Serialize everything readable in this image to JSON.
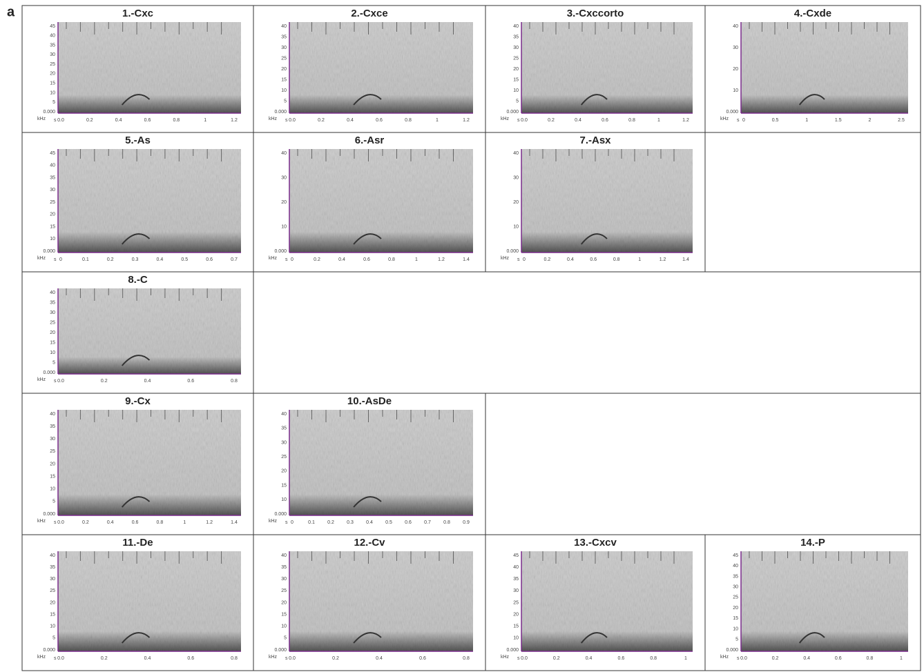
{
  "figure_label": "a",
  "y_unit": "kHz",
  "x_unit": "s",
  "panels": [
    {
      "title": "1.-Cxc",
      "yticks": [
        "45",
        "40",
        "35",
        "30",
        "25",
        "20",
        "15",
        "10",
        "5",
        "0.000"
      ],
      "xticks": [
        "0.0",
        "0.2",
        "0.4",
        "0.6",
        "0.8",
        "1",
        "1.2"
      ]
    },
    {
      "title": "2.-Cxce",
      "yticks": [
        "40",
        "35",
        "30",
        "25",
        "20",
        "15",
        "10",
        "5",
        "0.000"
      ],
      "xticks": [
        "0.0",
        "0.2",
        "0.4",
        "0.6",
        "0.8",
        "1",
        "1.2"
      ]
    },
    {
      "title": "3.-Cxccorto",
      "yticks": [
        "40",
        "35",
        "30",
        "25",
        "20",
        "15",
        "10",
        "5",
        "0.000"
      ],
      "xticks": [
        "0.0",
        "0.2",
        "0.4",
        "0.6",
        "0.8",
        "1",
        "1.2"
      ]
    },
    {
      "title": "4.-Cxde",
      "yticks": [
        "40",
        "30",
        "20",
        "10",
        "0.000"
      ],
      "xticks": [
        "0",
        "0.5",
        "1",
        "1.5",
        "2",
        "2.5"
      ]
    },
    {
      "title": "5.-As",
      "yticks": [
        "45",
        "40",
        "35",
        "30",
        "25",
        "20",
        "15",
        "10",
        "0.000"
      ],
      "xticks": [
        "0",
        "0.1",
        "0.2",
        "0.3",
        "0.4",
        "0.5",
        "0.6",
        "0.7"
      ]
    },
    {
      "title": "6.-Asr",
      "yticks": [
        "40",
        "30",
        "20",
        "10",
        "0.000"
      ],
      "xticks": [
        "0",
        "0.2",
        "0.4",
        "0.6",
        "0.8",
        "1",
        "1.2",
        "1.4"
      ]
    },
    {
      "title": "7.-Asx",
      "yticks": [
        "40",
        "30",
        "20",
        "10",
        "0.000"
      ],
      "xticks": [
        "0",
        "0.2",
        "0.4",
        "0.6",
        "0.8",
        "1",
        "1.2",
        "1.4"
      ]
    },
    {
      "title": "8.-C",
      "yticks": [
        "40",
        "35",
        "30",
        "25",
        "20",
        "15",
        "10",
        "5",
        "0.000"
      ],
      "xticks": [
        "0.0",
        "0.2",
        "0.4",
        "0.6",
        "0.8"
      ]
    },
    {
      "title": "9.-Cx",
      "yticks": [
        "40",
        "35",
        "30",
        "25",
        "20",
        "15",
        "10",
        "5",
        "0.000"
      ],
      "xticks": [
        "0.0",
        "0.2",
        "0.4",
        "0.6",
        "0.8",
        "1",
        "1.2",
        "1.4"
      ]
    },
    {
      "title": "10.-AsDe",
      "yticks": [
        "40",
        "35",
        "30",
        "25",
        "20",
        "15",
        "10",
        "0.000"
      ],
      "xticks": [
        "0",
        "0.1",
        "0.2",
        "0.3",
        "0.4",
        "0.5",
        "0.6",
        "0.7",
        "0.8",
        "0.9"
      ]
    },
    {
      "title": "11.-De",
      "yticks": [
        "40",
        "35",
        "30",
        "25",
        "20",
        "15",
        "10",
        "5",
        "0.000"
      ],
      "xticks": [
        "0.0",
        "0.2",
        "0.4",
        "0.6",
        "0.8"
      ]
    },
    {
      "title": "12.-Cv",
      "yticks": [
        "40",
        "35",
        "30",
        "25",
        "20",
        "15",
        "10",
        "5",
        "0.000"
      ],
      "xticks": [
        "0.0",
        "0.2",
        "0.4",
        "0.6",
        "0.8"
      ]
    },
    {
      "title": "13.-Cxcv",
      "yticks": [
        "45",
        "40",
        "35",
        "30",
        "25",
        "20",
        "15",
        "10",
        "0.000"
      ],
      "xticks": [
        "0.0",
        "0.2",
        "0.4",
        "0.6",
        "0.8",
        "1"
      ]
    },
    {
      "title": "14.-P",
      "yticks": [
        "45",
        "40",
        "35",
        "30",
        "25",
        "20",
        "15",
        "10",
        "5",
        "0.000"
      ],
      "xticks": [
        "0.0",
        "0.2",
        "0.4",
        "0.6",
        "0.8",
        "1"
      ]
    }
  ]
}
